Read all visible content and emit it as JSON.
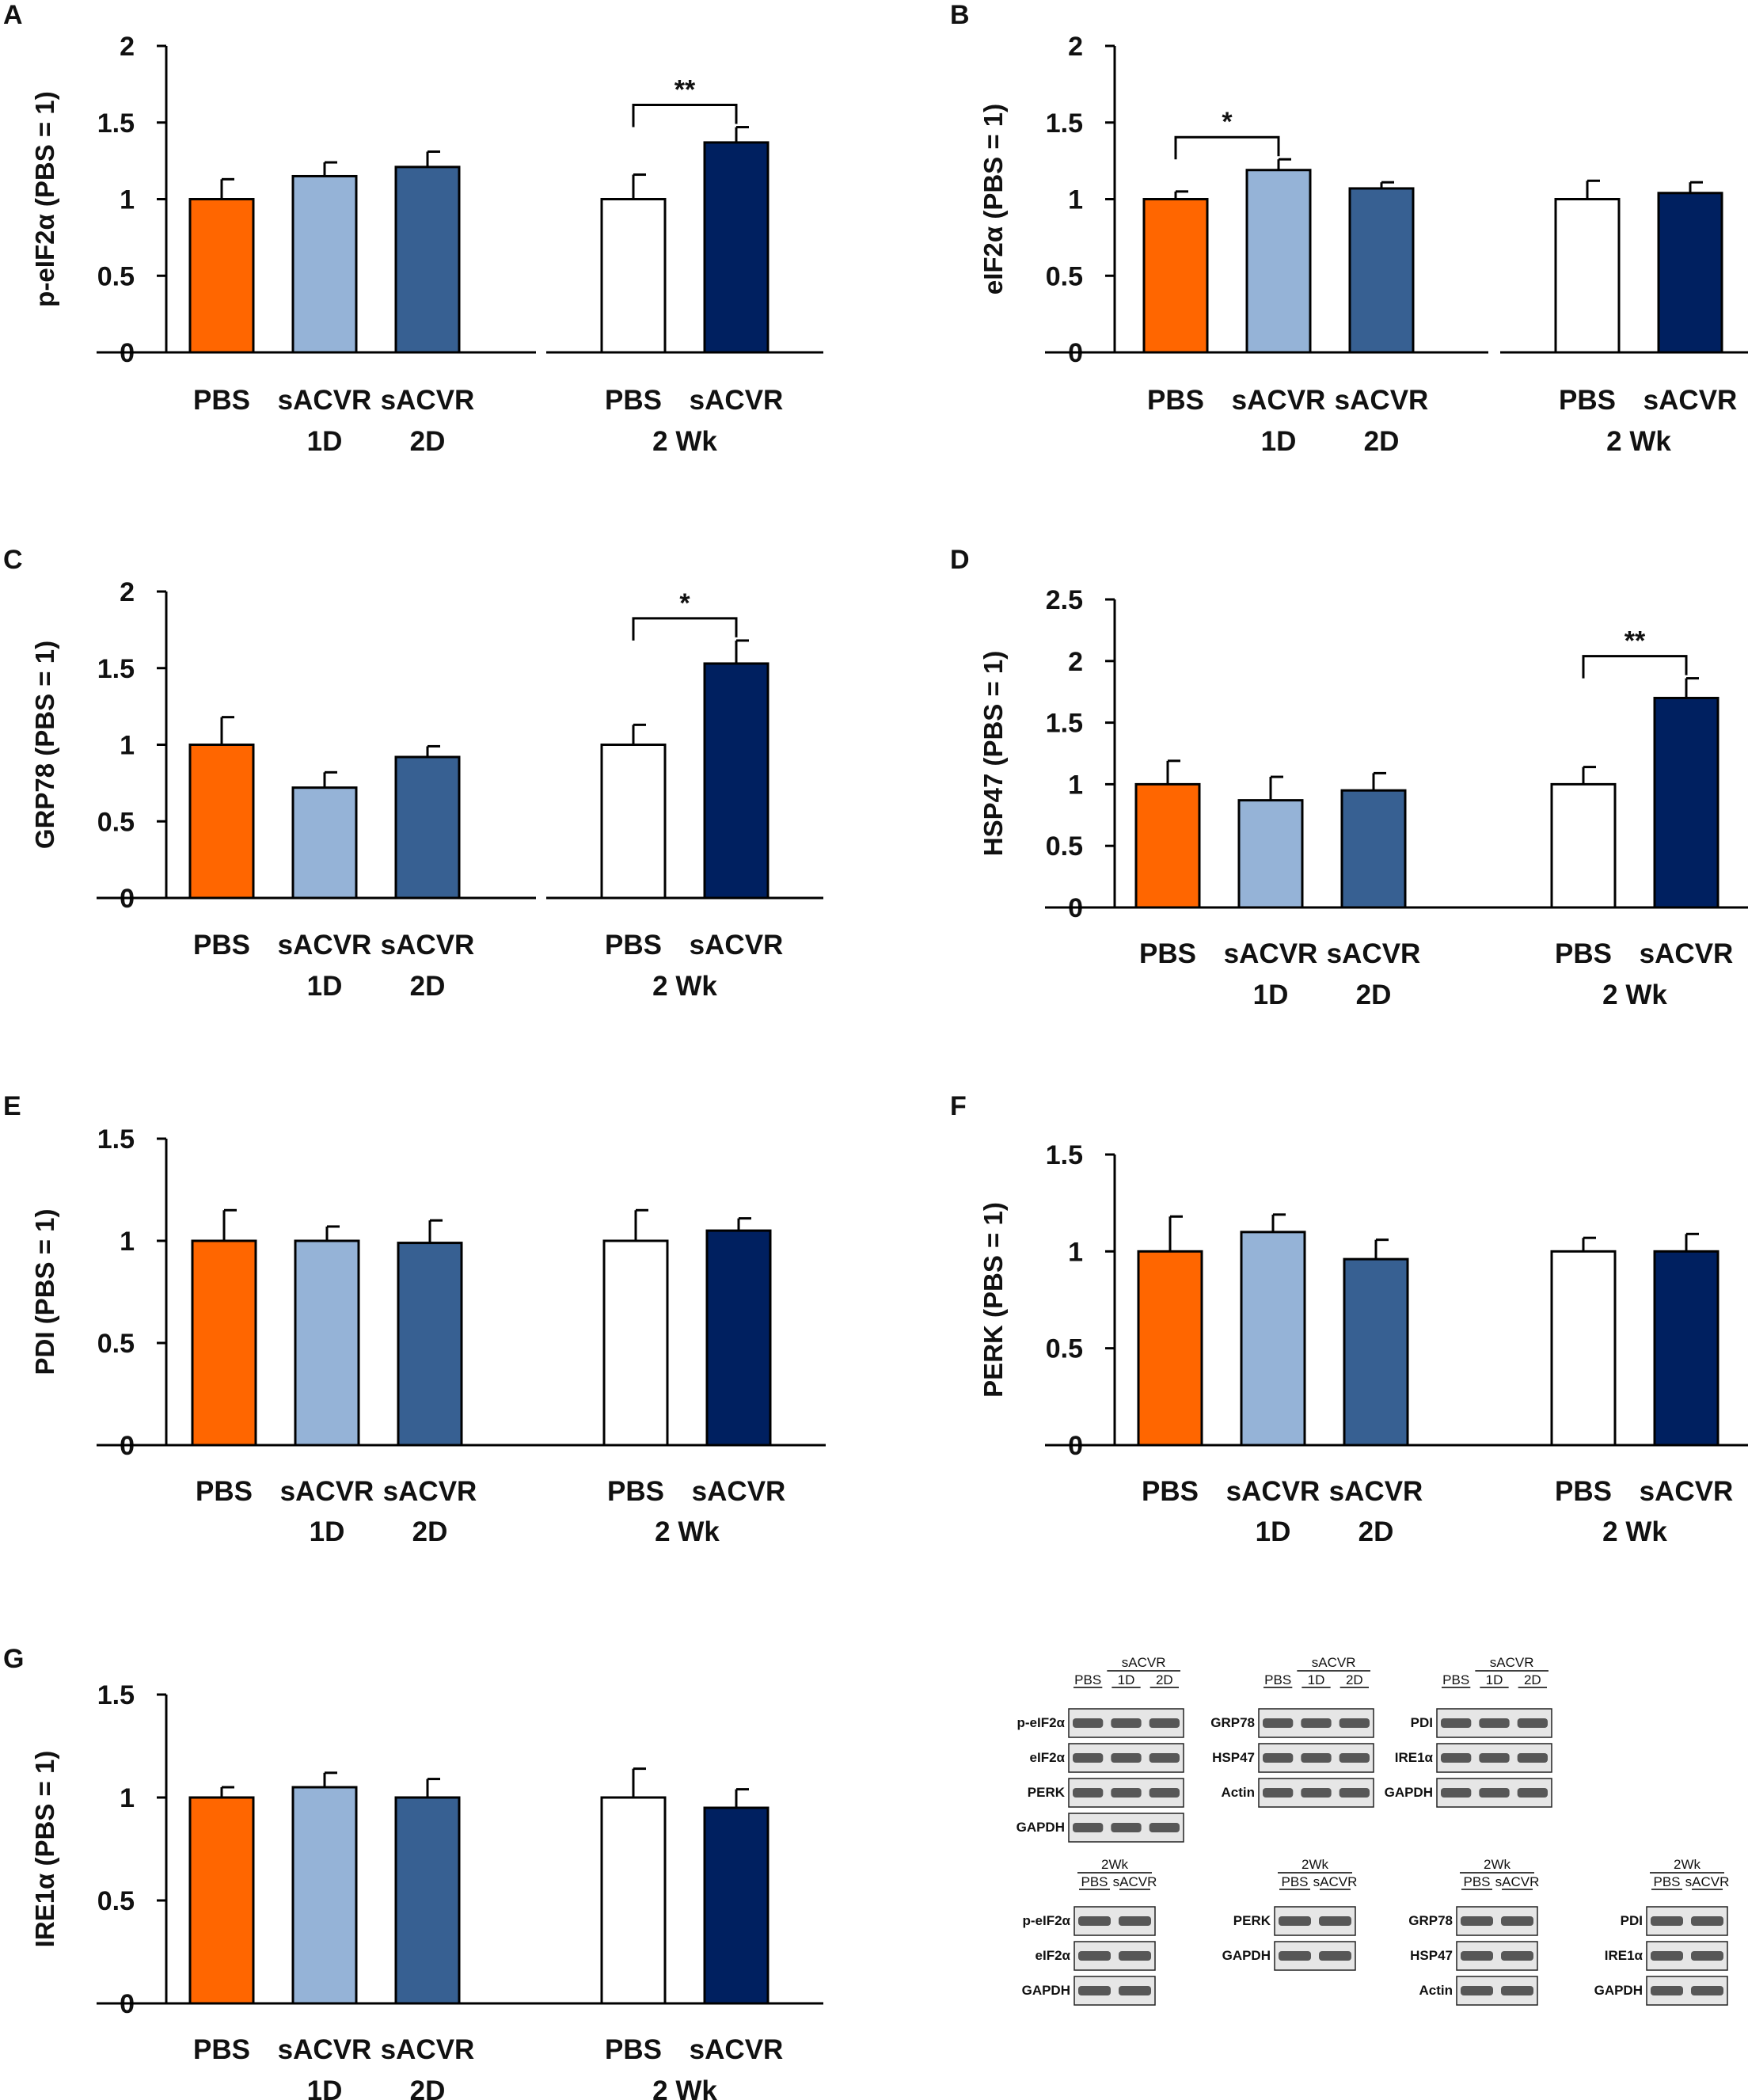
{
  "colors": {
    "PBS_1D2D": "#ff6600",
    "sACVR_1D": "#95b3d7",
    "sACVR_2D": "#376092",
    "PBS_2Wk": "#ffffff",
    "sACVR_2Wk": "#002060"
  },
  "chart_data": [
    {
      "type": "bar",
      "panel": "A",
      "ylabel": "p-eIF2α (PBS = 1)",
      "ylim": [
        0,
        2
      ],
      "yticks": [
        "0",
        "0.5",
        "1",
        "1.5",
        "2"
      ],
      "groups": [
        {
          "categories": [
            "PBS",
            "sACVR",
            "sACVR"
          ],
          "sublabels": [
            "",
            "1D",
            "2D"
          ],
          "values": [
            1.0,
            1.15,
            1.21
          ],
          "errors": [
            0.13,
            0.09,
            0.1
          ],
          "colors": [
            "#ff6600",
            "#95b3d7",
            "#376092"
          ]
        },
        {
          "categories": [
            "PBS",
            "sACVR"
          ],
          "group_label": "2 Wk",
          "values": [
            1.0,
            1.37
          ],
          "errors": [
            0.16,
            0.1
          ],
          "colors": [
            "#ffffff",
            "#002060"
          ]
        }
      ],
      "significance": {
        "group": 1,
        "from": 0,
        "to": 1,
        "label": "**"
      }
    },
    {
      "type": "bar",
      "panel": "B",
      "ylabel": "eIF2α  (PBS = 1)",
      "ylim": [
        0,
        2
      ],
      "yticks": [
        "0",
        "0.5",
        "1",
        "1.5",
        "2"
      ],
      "groups": [
        {
          "categories": [
            "PBS",
            "sACVR",
            "sACVR"
          ],
          "sublabels": [
            "",
            "1D",
            "2D"
          ],
          "values": [
            1.0,
            1.19,
            1.07
          ],
          "errors": [
            0.05,
            0.07,
            0.04
          ],
          "colors": [
            "#ff6600",
            "#95b3d7",
            "#376092"
          ]
        },
        {
          "categories": [
            "PBS",
            "sACVR"
          ],
          "group_label": "2 Wk",
          "values": [
            1.0,
            1.04
          ],
          "errors": [
            0.12,
            0.07
          ],
          "colors": [
            "#ffffff",
            "#002060"
          ]
        }
      ],
      "significance": {
        "group": 0,
        "from": 0,
        "to": 1,
        "label": "*"
      }
    },
    {
      "type": "bar",
      "panel": "C",
      "ylabel": "GRP78 (PBS = 1)",
      "ylim": [
        0,
        2
      ],
      "yticks": [
        "0",
        "0.5",
        "1",
        "1.5",
        "2"
      ],
      "groups": [
        {
          "categories": [
            "PBS",
            "sACVR",
            "sACVR"
          ],
          "sublabels": [
            "",
            "1D",
            "2D"
          ],
          "values": [
            1.0,
            0.72,
            0.92
          ],
          "errors": [
            0.18,
            0.1,
            0.07
          ],
          "colors": [
            "#ff6600",
            "#95b3d7",
            "#376092"
          ]
        },
        {
          "categories": [
            "PBS",
            "sACVR"
          ],
          "group_label": "2 Wk",
          "values": [
            1.0,
            1.53
          ],
          "errors": [
            0.13,
            0.15
          ],
          "colors": [
            "#ffffff",
            "#002060"
          ]
        }
      ],
      "significance": {
        "group": 1,
        "from": 0,
        "to": 1,
        "label": "*"
      }
    },
    {
      "type": "bar",
      "panel": "D",
      "ylabel": "HSP47 (PBS = 1)",
      "ylim": [
        0,
        2.5
      ],
      "yticks": [
        "0",
        "0.5",
        "1",
        "1.5",
        "2",
        "2.5"
      ],
      "groups": [
        {
          "categories": [
            "PBS",
            "sACVR",
            "sACVR"
          ],
          "sublabels": [
            "",
            "1D",
            "2D"
          ],
          "values": [
            1.0,
            0.87,
            0.95
          ],
          "errors": [
            0.19,
            0.19,
            0.14
          ],
          "colors": [
            "#ff6600",
            "#95b3d7",
            "#376092"
          ]
        },
        {
          "categories": [
            "PBS",
            "sACVR"
          ],
          "group_label": "2 Wk",
          "values": [
            1.0,
            1.7
          ],
          "errors": [
            0.14,
            0.16
          ],
          "colors": [
            "#ffffff",
            "#002060"
          ]
        }
      ],
      "significance": {
        "group": 1,
        "from": 0,
        "to": 1,
        "label": "**"
      }
    },
    {
      "type": "bar",
      "panel": "E",
      "ylabel": "PDI (PBS = 1)",
      "ylim": [
        0,
        1.5
      ],
      "yticks": [
        "0",
        "0.5",
        "1",
        "1.5"
      ],
      "groups": [
        {
          "categories": [
            "PBS",
            "sACVR",
            "sACVR"
          ],
          "sublabels": [
            "",
            "1D",
            "2D"
          ],
          "values": [
            1.0,
            1.0,
            0.99
          ],
          "errors": [
            0.15,
            0.07,
            0.11
          ],
          "colors": [
            "#ff6600",
            "#95b3d7",
            "#376092"
          ]
        },
        {
          "categories": [
            "PBS",
            "sACVR"
          ],
          "group_label": "2 Wk",
          "values": [
            1.0,
            1.05
          ],
          "errors": [
            0.15,
            0.06
          ],
          "colors": [
            "#ffffff",
            "#002060"
          ]
        }
      ]
    },
    {
      "type": "bar",
      "panel": "F",
      "ylabel": "PERK (PBS = 1)",
      "ylim": [
        0,
        1.5
      ],
      "yticks": [
        "0",
        "0.5",
        "1",
        "1.5"
      ],
      "groups": [
        {
          "categories": [
            "PBS",
            "sACVR",
            "sACVR"
          ],
          "sublabels": [
            "",
            "1D",
            "2D"
          ],
          "values": [
            1.0,
            1.1,
            0.96
          ],
          "errors": [
            0.18,
            0.09,
            0.1
          ],
          "colors": [
            "#ff6600",
            "#95b3d7",
            "#376092"
          ]
        },
        {
          "categories": [
            "PBS",
            "sACVR"
          ],
          "group_label": "2 Wk",
          "values": [
            1.0,
            1.0
          ],
          "errors": [
            0.07,
            0.09
          ],
          "colors": [
            "#ffffff",
            "#002060"
          ]
        }
      ]
    },
    {
      "type": "bar",
      "panel": "G",
      "ylabel": "IRE1α (PBS = 1)",
      "ylim": [
        0,
        1.5
      ],
      "yticks": [
        "0",
        "0.5",
        "1",
        "1.5"
      ],
      "groups": [
        {
          "categories": [
            "PBS",
            "sACVR",
            "sACVR"
          ],
          "sublabels": [
            "",
            "1D",
            "2D"
          ],
          "values": [
            1.0,
            1.05,
            1.0
          ],
          "errors": [
            0.05,
            0.07,
            0.09
          ],
          "colors": [
            "#ff6600",
            "#95b3d7",
            "#376092"
          ]
        },
        {
          "categories": [
            "PBS",
            "sACVR"
          ],
          "group_label": "2 Wk",
          "values": [
            1.0,
            0.95
          ],
          "errors": [
            0.14,
            0.09
          ],
          "colors": [
            "#ffffff",
            "#002060"
          ]
        }
      ]
    }
  ],
  "blots": [
    {
      "cols": [
        "PBS",
        "1D",
        "2D"
      ],
      "group_label": "sACVR",
      "bands": [
        "p-eIF2α",
        "eIF2α",
        "PERK",
        "GAPDH"
      ]
    },
    {
      "cols": [
        "PBS",
        "1D",
        "2D"
      ],
      "group_label": "sACVR",
      "bands": [
        "GRP78",
        "HSP47",
        "Actin"
      ]
    },
    {
      "cols": [
        "PBS",
        "1D",
        "2D"
      ],
      "group_label": "sACVR",
      "bands": [
        "PDI",
        "IRE1α",
        "GAPDH"
      ]
    },
    {
      "cols": [
        "PBS",
        "sACVR"
      ],
      "group_label": "2Wk",
      "bands": [
        "p-eIF2α",
        "eIF2α",
        "GAPDH"
      ]
    },
    {
      "cols": [
        "PBS",
        "sACVR"
      ],
      "group_label": "2Wk",
      "bands": [
        "PERK",
        "GAPDH"
      ]
    },
    {
      "cols": [
        "PBS",
        "sACVR"
      ],
      "group_label": "2Wk",
      "bands": [
        "GRP78",
        "HSP47",
        "Actin"
      ]
    },
    {
      "cols": [
        "PBS",
        "sACVR"
      ],
      "group_label": "2Wk",
      "bands": [
        "PDI",
        "IRE1α",
        "GAPDH"
      ]
    }
  ]
}
